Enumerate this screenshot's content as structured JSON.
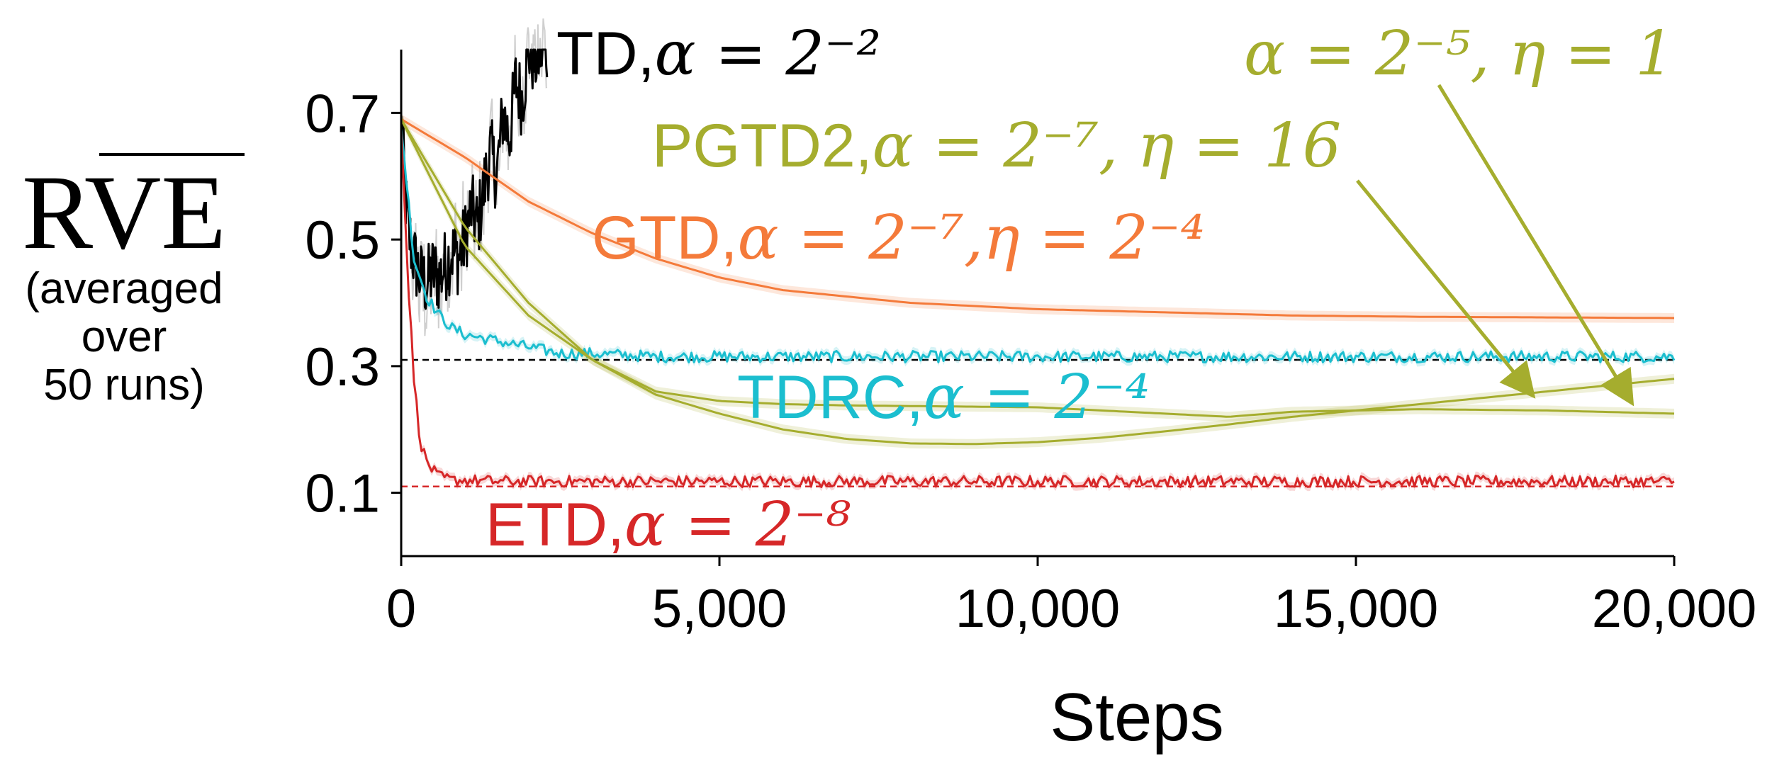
{
  "chart_data": {
    "type": "line",
    "xlabel": "Steps",
    "ylabel": {
      "main": "RVE",
      "overline": "VE",
      "sub": [
        "(averaged",
        "over",
        "50 runs)"
      ]
    },
    "xlim": [
      0,
      20000
    ],
    "ylim": [
      0,
      0.8
    ],
    "xticks": [
      0,
      5000,
      10000,
      15000,
      20000
    ],
    "xtick_labels": [
      "0",
      "5,000",
      "10,000",
      "15,000",
      "20,000"
    ],
    "yticks": [
      0.1,
      0.3,
      0.5,
      0.7
    ],
    "ytick_labels": [
      "0.1",
      "0.3",
      "0.5",
      "0.7"
    ],
    "grid": false,
    "reference_lines": [
      {
        "value": 0.31,
        "color": "#000000"
      },
      {
        "value": 0.11,
        "color": "#d62728"
      }
    ],
    "series": [
      {
        "name": "TD",
        "color": "#000000",
        "noisy": true,
        "x": [
          0,
          100,
          200,
          300,
          400,
          500,
          600,
          700,
          800,
          900,
          1000,
          1100,
          1200,
          1300,
          1400,
          1500,
          1600,
          1700,
          1800,
          1900,
          2000,
          2100,
          2200,
          2300
        ],
        "y": [
          0.68,
          0.52,
          0.47,
          0.44,
          0.43,
          0.45,
          0.44,
          0.46,
          0.48,
          0.47,
          0.5,
          0.55,
          0.52,
          0.58,
          0.64,
          0.6,
          0.7,
          0.66,
          0.75,
          0.72,
          0.8,
          0.78,
          0.8,
          0.8
        ]
      },
      {
        "name": "GTD",
        "color": "#f47a3a",
        "noisy": false,
        "x": [
          0,
          1000,
          2000,
          3000,
          4000,
          5000,
          6000,
          7000,
          8000,
          9000,
          10000,
          12000,
          14000,
          16000,
          18000,
          20000
        ],
        "y": [
          0.69,
          0.63,
          0.56,
          0.51,
          0.47,
          0.44,
          0.42,
          0.41,
          0.4,
          0.395,
          0.39,
          0.385,
          0.38,
          0.378,
          0.377,
          0.376
        ]
      },
      {
        "name": "TDRC",
        "color": "#1bbecf",
        "noisy": true,
        "x": [
          0,
          200,
          400,
          600,
          800,
          1000,
          1500,
          2000,
          2500,
          3000,
          4000,
          5000,
          6000,
          8000,
          10000,
          12000,
          14000,
          16000,
          18000,
          20000
        ],
        "y": [
          0.68,
          0.47,
          0.41,
          0.38,
          0.36,
          0.35,
          0.34,
          0.33,
          0.32,
          0.32,
          0.315,
          0.315,
          0.315,
          0.315,
          0.315,
          0.315,
          0.315,
          0.315,
          0.315,
          0.315
        ]
      },
      {
        "name": "ETD",
        "color": "#d62728",
        "noisy": true,
        "x": [
          0,
          100,
          200,
          300,
          400,
          500,
          600,
          800,
          1000,
          1500,
          2000,
          3000,
          5000,
          10000,
          15000,
          20000
        ],
        "y": [
          0.68,
          0.45,
          0.28,
          0.18,
          0.15,
          0.135,
          0.125,
          0.12,
          0.12,
          0.118,
          0.118,
          0.118,
          0.118,
          0.118,
          0.118,
          0.118
        ]
      },
      {
        "name": "PGTD2",
        "color": "#a5ad2e",
        "noisy": false,
        "x": [
          0,
          1000,
          2000,
          3000,
          4000,
          5000,
          6000,
          7000,
          8000,
          9000,
          10000,
          11000,
          12000,
          13000,
          14000,
          15000,
          16000,
          17000,
          18000,
          19000,
          20000
        ],
        "y": [
          0.69,
          0.49,
          0.38,
          0.31,
          0.255,
          0.225,
          0.2,
          0.185,
          0.178,
          0.177,
          0.18,
          0.187,
          0.197,
          0.208,
          0.22,
          0.23,
          0.24,
          0.25,
          0.26,
          0.27,
          0.28
        ]
      },
      {
        "name": "PGTD2",
        "color": "#a5ad2e",
        "noisy": false,
        "x": [
          0,
          1000,
          2000,
          3000,
          4000,
          5000,
          6000,
          7000,
          8000,
          10000,
          12000,
          13000,
          14000,
          16000,
          18000,
          20000
        ],
        "y": [
          0.69,
          0.52,
          0.4,
          0.31,
          0.26,
          0.245,
          0.24,
          0.238,
          0.237,
          0.235,
          0.225,
          0.22,
          0.228,
          0.232,
          0.23,
          0.225
        ]
      }
    ],
    "annotations": [
      {
        "text": "TD,",
        "math": "α = 2⁻²",
        "color": "#000000"
      },
      {
        "text": "",
        "math": "α = 2⁻⁵,  η = 1",
        "color": "#a5ad2e"
      },
      {
        "text": "PGTD2,",
        "math": "α = 2⁻⁷, η = 16",
        "color": "#a5ad2e"
      },
      {
        "text": "GTD,",
        "math": "α = 2⁻⁷,η = 2⁻⁴",
        "color": "#f47a3a"
      },
      {
        "text": "TDRC,",
        "math": "α = 2⁻⁴",
        "color": "#1bbecf"
      },
      {
        "text": "ETD,",
        "math": "α = 2⁻⁸",
        "color": "#d62728"
      }
    ]
  }
}
